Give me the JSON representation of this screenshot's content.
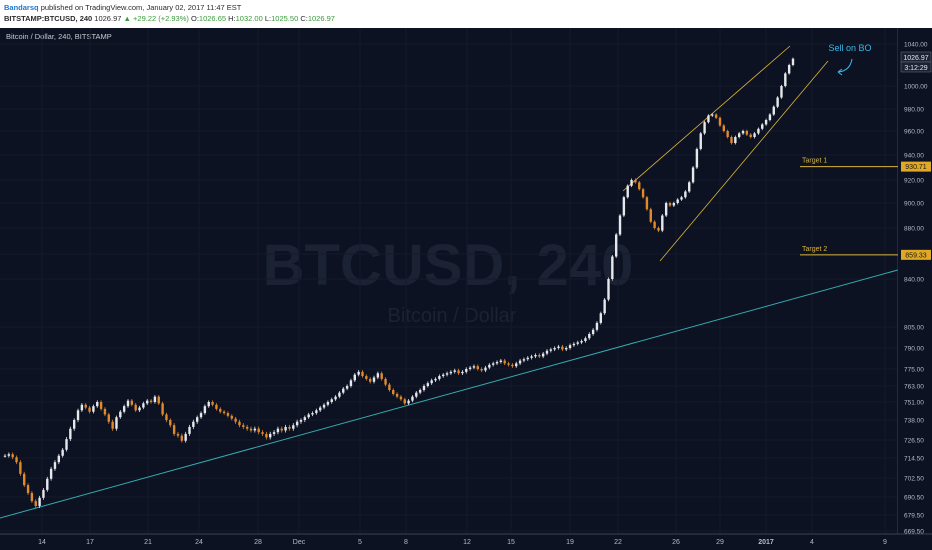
{
  "header": {
    "author": "Bandarsq",
    "published": "published on TradingView.com, January 02, 2017 11:47 EST",
    "symbol": "BITSTAMP:BTCUSD, 240",
    "last": "1026.97",
    "change": "▲ +29.22 (+2.93%)",
    "open_label": "O:",
    "open": "1026.65",
    "high_label": "H:",
    "high": "1032.00",
    "low_label": "L:",
    "low": "1025.50",
    "close_label": "C:",
    "close": "1026.97"
  },
  "chart_data": {
    "type": "candlestick",
    "title": "Bitcoin / Dollar, 240, BITSTAMP",
    "watermark": "BTCUSD, 240",
    "watermark_sub": "Bitcoin / Dollar",
    "ylim": [
      669.5,
      1044
    ],
    "y_ticks": [
      "1040.00",
      "1000.00",
      "980.00",
      "960.00",
      "940.00",
      "920.00",
      "900.00",
      "880.00",
      "860.00",
      "840.00",
      "805.00",
      "790.00",
      "775.00",
      "763.00",
      "751.00",
      "738.00",
      "726.50",
      "714.50",
      "702.50",
      "690.50",
      "679.50",
      "669.50"
    ],
    "x_ticks": [
      "14",
      "17",
      "21",
      "24",
      "28",
      "Dec",
      "5",
      "8",
      "12",
      "15",
      "19",
      "22",
      "26",
      "29",
      "2017",
      "4",
      "9"
    ],
    "price_labels": {
      "last": "1026.97",
      "countdown": "3:12:29",
      "target1": "930.71",
      "target2": "859.33"
    },
    "price_markers": [
      {
        "label": "Target 1",
        "value": 930.71
      },
      {
        "label": "Target 2",
        "value": 859.33
      }
    ],
    "annotations": {
      "sell": "Sell on BO",
      "target1": "Target 1",
      "target2": "Target 2"
    },
    "series": [
      {
        "values": [
          716,
          717,
          715,
          712,
          705,
          698,
          693,
          688,
          685,
          690,
          695,
          702,
          708,
          712,
          716,
          720,
          727,
          733,
          738,
          745,
          749,
          747,
          744,
          748,
          751,
          746,
          742,
          737,
          733,
          740,
          744,
          748,
          752,
          749,
          745,
          747,
          750,
          752,
          751,
          755,
          750,
          742,
          738,
          735,
          730,
          729,
          726,
          730,
          734,
          737,
          740,
          743,
          748,
          751,
          749,
          746,
          744,
          743,
          741,
          739,
          737,
          735,
          734,
          733,
          732,
          733,
          731,
          730,
          728,
          730,
          731,
          733,
          732,
          734,
          733,
          735,
          737,
          738,
          740,
          742,
          743,
          745,
          747,
          749,
          751,
          753,
          755,
          758,
          761,
          763,
          767,
          771,
          773,
          770,
          768,
          766,
          769,
          772,
          768,
          764,
          760,
          757,
          755,
          753,
          750,
          752,
          755,
          758,
          760,
          763,
          765,
          767,
          768,
          770,
          771,
          772,
          773,
          774,
          772,
          773,
          775,
          776,
          777,
          775,
          774,
          776,
          778,
          779,
          780,
          781,
          779,
          778,
          777,
          779,
          781,
          782,
          783,
          784,
          785,
          784,
          786,
          788,
          789,
          790,
          791,
          789,
          790,
          792,
          793,
          794,
          795,
          797,
          800,
          803,
          808,
          815,
          825,
          840,
          858,
          875,
          890,
          905,
          915,
          920,
          918,
          912,
          905,
          895,
          885,
          880,
          878,
          890,
          900,
          898,
          900,
          903,
          905,
          910,
          918,
          930,
          945,
          958,
          968,
          974,
          975,
          972,
          965,
          960,
          955,
          950,
          955,
          958,
          960,
          957,
          955,
          958,
          962,
          966,
          970,
          975,
          982,
          990,
          1000,
          1012,
          1020,
          1026
        ]
      }
    ]
  }
}
